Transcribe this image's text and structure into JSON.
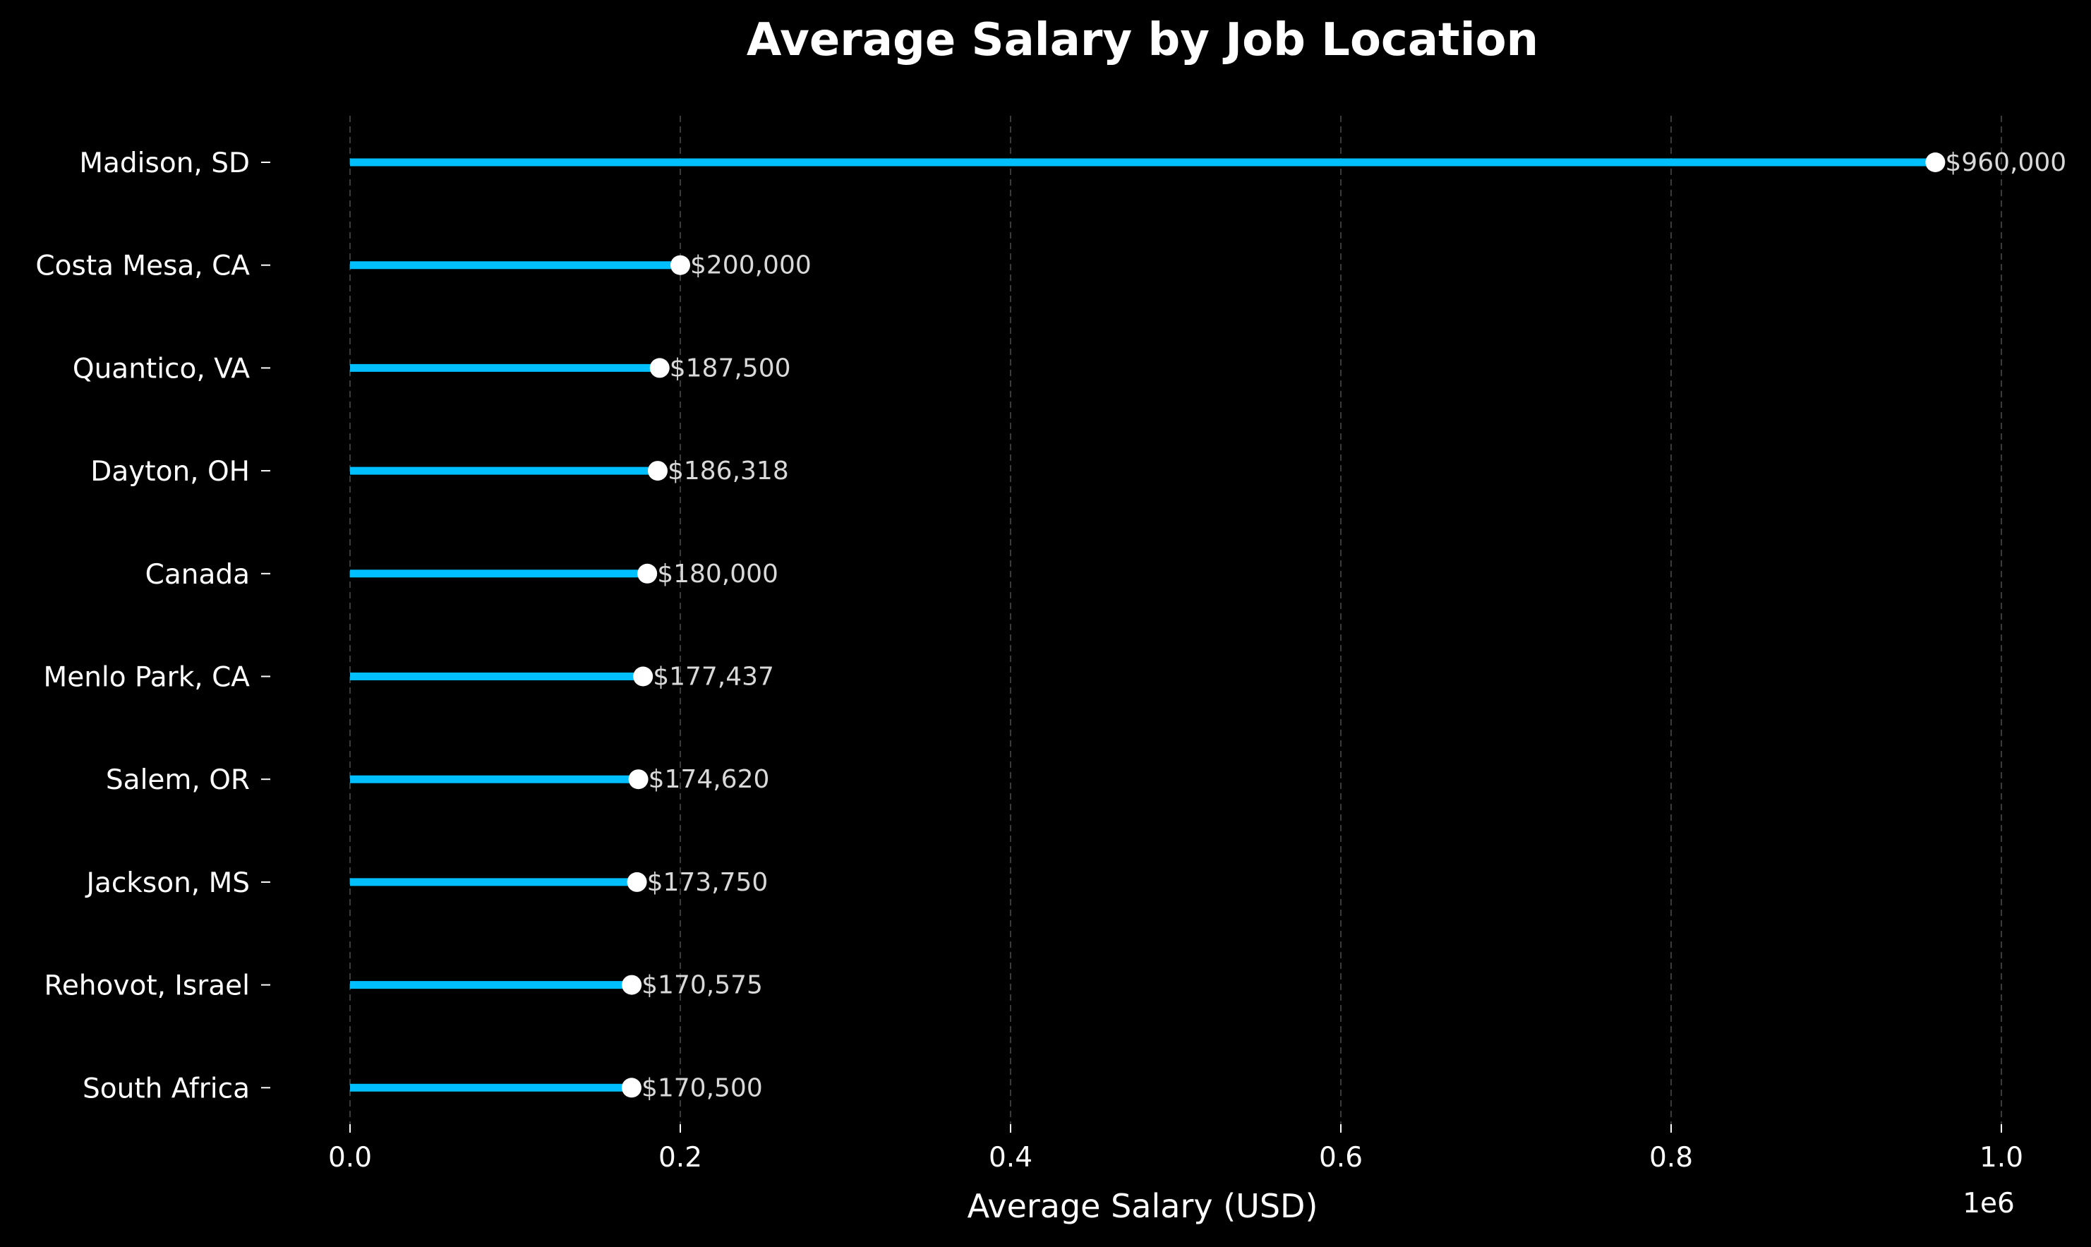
{
  "chart_data": {
    "type": "lollipop",
    "orientation": "horizontal",
    "title": "Average Salary by Job Location",
    "xlabel": "Average Salary (USD)",
    "x_offset_label": "1e6",
    "xlim": [
      0,
      1000000
    ],
    "x_ticks": [
      0,
      200000,
      400000,
      600000,
      800000,
      1000000
    ],
    "x_tick_labels": [
      "0.0",
      "0.2",
      "0.4",
      "0.6",
      "0.8",
      "1.0"
    ],
    "grid": "x, dashed",
    "colors": {
      "background": "#000000",
      "stem": "#00bfff",
      "marker": "#ffffff",
      "grid": "#3a3a3a",
      "text": "#ffffff",
      "data_label": "#d9d9d9"
    },
    "categories": [
      "Madison, SD",
      "Costa Mesa, CA",
      "Quantico, VA",
      "Dayton, OH",
      "Canada",
      "Menlo Park, CA",
      "Salem, OR",
      "Jackson, MS",
      "Rehovot, Israel",
      "South Africa"
    ],
    "values": [
      960000,
      200000,
      187500,
      186318,
      180000,
      177437,
      174620,
      173750,
      170575,
      170500
    ],
    "value_labels": [
      "$960,000",
      "$200,000",
      "$187,500",
      "$186,318",
      "$180,000",
      "$177,437",
      "$174,620",
      "$173,750",
      "$170,575",
      "$170,500"
    ]
  }
}
